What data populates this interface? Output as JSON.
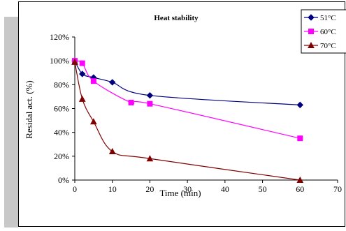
{
  "chart_data": {
    "type": "line",
    "title": "Heat stability",
    "xlabel": "Time (min)",
    "ylabel": "Residal act. (%)",
    "xlim": [
      0,
      70
    ],
    "ylim": [
      0,
      120
    ],
    "x_ticks": [
      "0",
      "10",
      "20",
      "30",
      "40",
      "50",
      "60",
      "70"
    ],
    "y_ticks": [
      "0%",
      "20%",
      "40%",
      "60%",
      "80%",
      "100%",
      "120%"
    ],
    "grid": false,
    "legend_position": "top-right",
    "series": [
      {
        "name": "51°C",
        "color": "#00007f",
        "marker": "diamond",
        "x": [
          0,
          2,
          5,
          10,
          20,
          60
        ],
        "y": [
          100,
          89,
          86,
          82,
          71,
          63
        ]
      },
      {
        "name": "60°C",
        "color": "#ff00ff",
        "marker": "square",
        "x": [
          0,
          2,
          5,
          15,
          20,
          60
        ],
        "y": [
          100,
          98,
          83,
          65,
          64,
          35
        ]
      },
      {
        "name": "70°C",
        "color": "#7f0000",
        "marker": "triangle",
        "x": [
          0,
          2,
          5,
          10,
          20,
          60
        ],
        "y": [
          99,
          68,
          49,
          24,
          18,
          0
        ]
      }
    ]
  }
}
